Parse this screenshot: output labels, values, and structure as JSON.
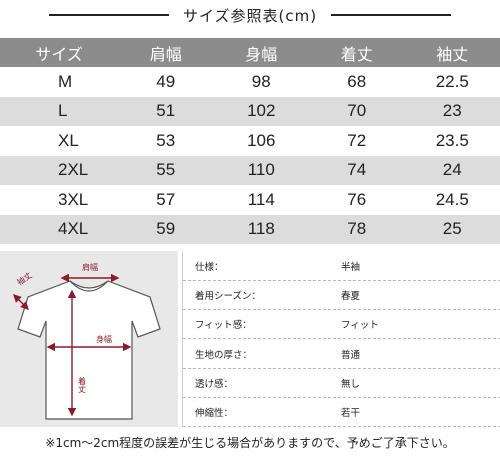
{
  "header": {
    "title": "サイズ参照表(cm)"
  },
  "size_table": {
    "columns": [
      "サイズ",
      "肩幅",
      "身幅",
      "着丈",
      "袖丈"
    ],
    "rows": [
      [
        "M",
        "49",
        "98",
        "68",
        "22.5"
      ],
      [
        "L",
        "51",
        "102",
        "70",
        "23"
      ],
      [
        "XL",
        "53",
        "106",
        "72",
        "23.5"
      ],
      [
        "2XL",
        "55",
        "110",
        "74",
        "24"
      ],
      [
        "3XL",
        "57",
        "114",
        "76",
        "24.5"
      ],
      [
        "4XL",
        "59",
        "118",
        "78",
        "25"
      ]
    ]
  },
  "diagram": {
    "labels": {
      "sleeve": "袖丈",
      "shoulder": "肩幅",
      "body_width": "身幅",
      "length": "着丈"
    },
    "accent_color": "#8b1a2b"
  },
  "specs": [
    {
      "label": "仕様：",
      "value": "半袖"
    },
    {
      "label": "着用シーズン：",
      "value": "春夏"
    },
    {
      "label": "フィット感：",
      "value": "フィット"
    },
    {
      "label": "生地の厚さ：",
      "value": "普通"
    },
    {
      "label": "透け感：",
      "value": "無し"
    },
    {
      "label": "伸縮性：",
      "value": "若干"
    }
  ],
  "footer": {
    "note": "※1cm〜2cm程度の誤差が生じる場合がありますので、予めご了承下さい。"
  }
}
